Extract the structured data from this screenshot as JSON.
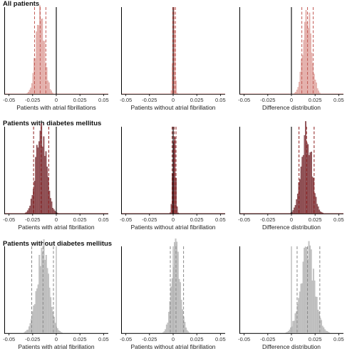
{
  "xlim": [
    -0.055,
    0.055
  ],
  "tick_values": [
    -0.05,
    -0.025,
    0,
    0.025,
    0.05
  ],
  "tick_labels": [
    "-0.05",
    "-0.025",
    "0",
    "0.025",
    "0.05"
  ],
  "rows": [
    {
      "title": "All patients",
      "fill": "#e8b8b4",
      "edge": "#d89a94",
      "baseline": "#c98a84",
      "dash_color": "#c25b55",
      "zero_color": "#000000",
      "panels": [
        {
          "xlabel": "Patients with atrial fibrillations",
          "mean": -0.017,
          "sd": 0.0045,
          "dashes": [
            -0.023,
            -0.017,
            -0.011
          ]
        },
        {
          "xlabel": "Patients without atrial fibrillation",
          "mean": 0.001,
          "sd": 0.0011,
          "dashes": [
            -0.0005,
            0.001,
            0.0025
          ]
        },
        {
          "xlabel": "Difference distribution",
          "mean": 0.017,
          "sd": 0.0045,
          "dashes": [
            0.011,
            0.017,
            0.023
          ]
        }
      ]
    },
    {
      "title": "Patients with diabetes mellitus",
      "fill": "#9a5a5e",
      "edge": "#6b2e33",
      "baseline": "#8b3a3a",
      "dash_color": "#8b1a1a",
      "zero_color": "#000000",
      "panels": [
        {
          "xlabel": "Patients with atrial fibrillation",
          "mean": -0.016,
          "sd": 0.0055,
          "dashes": [
            -0.024,
            -0.016,
            -0.008
          ]
        },
        {
          "xlabel": "Patients without atrial fibrillation",
          "mean": 0.001,
          "sd": 0.0014,
          "dashes": [
            -0.001,
            0.001,
            0.003
          ]
        },
        {
          "xlabel": "Difference distribution",
          "mean": 0.016,
          "sd": 0.0055,
          "dashes": [
            0.008,
            0.016,
            0.024
          ]
        }
      ]
    },
    {
      "title": "Patients without diabetes mellitus",
      "fill": "#c4c4c4",
      "edge": "#b0b0b0",
      "baseline": "#9a9a9a",
      "dash_color": "#888888",
      "zero_color": "#aaaaaa",
      "panels": [
        {
          "xlabel": "Patients with atrial fibrillation",
          "mean": -0.014,
          "sd": 0.0065,
          "dashes": [
            -0.026,
            -0.014,
            -0.003
          ]
        },
        {
          "xlabel": "Patients without atrial fibrillation",
          "mean": 0.003,
          "sd": 0.0045,
          "dashes": [
            -0.003,
            0.003,
            0.011
          ]
        },
        {
          "xlabel": "Difference distribution",
          "mean": 0.017,
          "sd": 0.0075,
          "dashes": [
            0.006,
            0.017,
            0.03
          ]
        }
      ]
    }
  ],
  "chart_data": [
    {
      "type": "bar",
      "title": "All patients",
      "xlabel": "Patients with atrial fibrillations",
      "xlim": [
        -0.055,
        0.055
      ],
      "approx_center": -0.017,
      "dashed_lines": [
        -0.023,
        -0.017,
        -0.011
      ],
      "solid_line": 0
    },
    {
      "type": "bar",
      "title": "",
      "xlabel": "Patients without atrial fibrillation",
      "xlim": [
        -0.055,
        0.055
      ],
      "approx_center": 0.001,
      "dashed_lines": [
        -0.0005,
        0.001,
        0.0025
      ],
      "solid_line": 0
    },
    {
      "type": "bar",
      "title": "",
      "xlabel": "Difference distribution",
      "xlim": [
        -0.055,
        0.055
      ],
      "approx_center": 0.017,
      "dashed_lines": [
        0.011,
        0.017,
        0.023
      ],
      "solid_line": 0
    },
    {
      "type": "bar",
      "title": "Patients with diabetes mellitus",
      "xlabel": "Patients with atrial fibrillation",
      "xlim": [
        -0.055,
        0.055
      ],
      "approx_center": -0.016,
      "dashed_lines": [
        -0.024,
        -0.016,
        -0.008
      ],
      "solid_line": 0
    },
    {
      "type": "bar",
      "title": "",
      "xlabel": "Patients without atrial fibrillation",
      "xlim": [
        -0.055,
        0.055
      ],
      "approx_center": 0.001,
      "dashed_lines": [
        -0.001,
        0.001,
        0.003
      ],
      "solid_line": 0
    },
    {
      "type": "bar",
      "title": "",
      "xlabel": "Difference distribution",
      "xlim": [
        -0.055,
        0.055
      ],
      "approx_center": 0.016,
      "dashed_lines": [
        0.008,
        0.016,
        0.024
      ],
      "solid_line": 0
    },
    {
      "type": "bar",
      "title": "Patients without diabetes mellitus",
      "xlabel": "Patients with atrial fibrillation",
      "xlim": [
        -0.055,
        0.055
      ],
      "approx_center": -0.014,
      "dashed_lines": [
        -0.026,
        -0.014,
        -0.003
      ],
      "solid_line": 0
    },
    {
      "type": "bar",
      "title": "",
      "xlabel": "Patients without atrial fibrillation",
      "xlim": [
        -0.055,
        0.055
      ],
      "approx_center": 0.003,
      "dashed_lines": [
        -0.003,
        0.003,
        0.011
      ],
      "solid_line": 0
    },
    {
      "type": "bar",
      "title": "",
      "xlabel": "Difference distribution",
      "xlim": [
        -0.055,
        0.055
      ],
      "approx_center": 0.017,
      "dashed_lines": [
        0.006,
        0.017,
        0.03
      ],
      "solid_line": 0
    }
  ]
}
